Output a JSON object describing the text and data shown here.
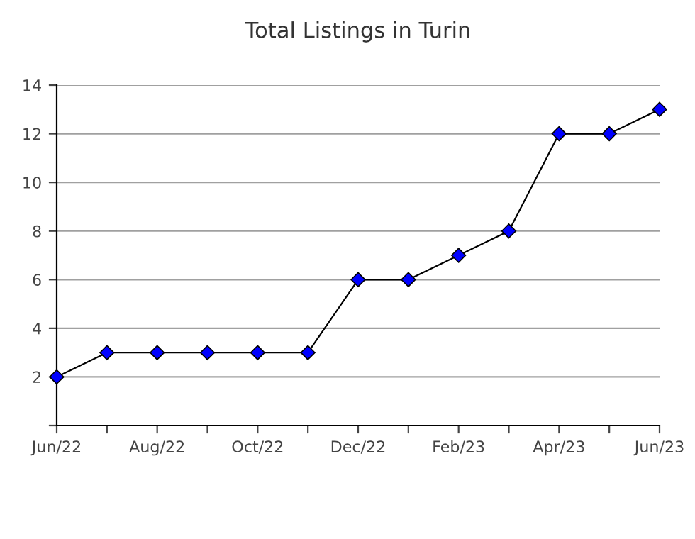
{
  "chart_data": {
    "type": "line",
    "title": "Total Listings in Turin",
    "categories": [
      "Jun/22",
      null,
      "Aug/22",
      null,
      "Oct/22",
      null,
      "Dec/22",
      null,
      "Feb/23",
      null,
      "Apr/23",
      null,
      "Jun/23"
    ],
    "series": [
      {
        "color": "#0000ff",
        "values": [
          2,
          3,
          3,
          3,
          3,
          3,
          6,
          6,
          7,
          8,
          12,
          12,
          13
        ]
      }
    ],
    "ylim": [
      0,
      14
    ],
    "yticks": [
      {
        "value": 0,
        "label": null
      },
      2,
      4,
      6,
      8,
      10,
      12,
      14
    ],
    "grid": "y",
    "marker": "diamond",
    "line_style": "solid"
  }
}
